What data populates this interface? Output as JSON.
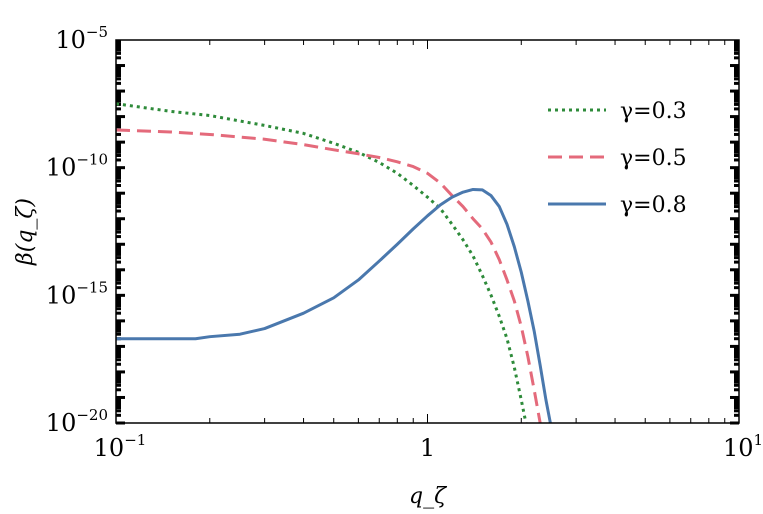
{
  "chart_data": {
    "type": "line",
    "title": "",
    "xlabel": "q_ζ",
    "ylabel": "β(q_ζ)",
    "xscale": "log",
    "yscale": "log",
    "xlim": [
      0.1,
      10
    ],
    "ylim": [
      1e-20,
      1e-05
    ],
    "x_tick_labels": [
      {
        "value": 0.1,
        "base": "10",
        "exp": "−1"
      },
      {
        "value": 1,
        "base": "1",
        "exp": ""
      },
      {
        "value": 10,
        "base": "10",
        "exp": "1"
      }
    ],
    "y_tick_labels": [
      {
        "value": 1e-05,
        "base": "10",
        "exp": "−5"
      },
      {
        "value": 1e-10,
        "base": "10",
        "exp": "−10"
      },
      {
        "value": 1e-15,
        "base": "10",
        "exp": "−15"
      },
      {
        "value": 1e-20,
        "base": "10",
        "exp": "−20"
      }
    ],
    "grid": false,
    "legend_position": "top-right",
    "series": [
      {
        "name": "γ=0.3",
        "color": "#2e8b3a",
        "dash": "dotted",
        "points": [
          [
            0.1,
            3.2e-08
          ],
          [
            0.15,
            1.6e-08
          ],
          [
            0.2,
            1.1e-08
          ],
          [
            0.3,
            4.5e-09
          ],
          [
            0.4,
            2.2e-09
          ],
          [
            0.5,
            9e-10
          ],
          [
            0.6,
            4e-10
          ],
          [
            0.7,
            1.6e-10
          ],
          [
            0.8,
            6e-11
          ],
          [
            0.9,
            2e-11
          ],
          [
            1.0,
            7e-12
          ],
          [
            1.1,
            2.5e-12
          ],
          [
            1.2,
            6e-13
          ],
          [
            1.3,
            1.5e-13
          ],
          [
            1.4,
            3.5e-14
          ],
          [
            1.5,
            6e-15
          ],
          [
            1.6,
            1e-15
          ],
          [
            1.7,
            1.5e-16
          ],
          [
            1.8,
            2e-17
          ],
          [
            1.9,
            1.5e-18
          ],
          [
            2.0,
            8e-20
          ],
          [
            2.07,
            1e-20
          ]
        ]
      },
      {
        "name": "γ=0.5",
        "color": "#e46a7b",
        "dash": "dashed",
        "points": [
          [
            0.1,
            3e-09
          ],
          [
            0.15,
            2.5e-09
          ],
          [
            0.2,
            2e-09
          ],
          [
            0.3,
            1.3e-09
          ],
          [
            0.4,
            8e-10
          ],
          [
            0.5,
            5e-10
          ],
          [
            0.6,
            3.5e-10
          ],
          [
            0.7,
            2.5e-10
          ],
          [
            0.8,
            1.7e-10
          ],
          [
            0.9,
            1.1e-10
          ],
          [
            1.0,
            6e-11
          ],
          [
            1.1,
            2.5e-11
          ],
          [
            1.2,
            8e-12
          ],
          [
            1.3,
            3e-12
          ],
          [
            1.4,
            1e-12
          ],
          [
            1.5,
            4e-13
          ],
          [
            1.6,
            1.2e-13
          ],
          [
            1.7,
            2.5e-14
          ],
          [
            1.8,
            4e-15
          ],
          [
            1.9,
            6e-16
          ],
          [
            2.0,
            6e-17
          ],
          [
            2.1,
            4e-18
          ],
          [
            2.2,
            2e-19
          ],
          [
            2.3,
            1e-20
          ]
        ]
      },
      {
        "name": "γ=0.8",
        "color": "#4a78ad",
        "dash": "solid",
        "points": [
          [
            0.1,
            2e-17
          ],
          [
            0.18,
            2e-17
          ],
          [
            0.2,
            2.4e-17
          ],
          [
            0.25,
            3e-17
          ],
          [
            0.3,
            5e-17
          ],
          [
            0.4,
            2e-16
          ],
          [
            0.5,
            8e-16
          ],
          [
            0.6,
            4e-15
          ],
          [
            0.7,
            2.2e-14
          ],
          [
            0.8,
            1e-13
          ],
          [
            0.9,
            4e-13
          ],
          [
            1.0,
            1.3e-12
          ],
          [
            1.1,
            3.5e-12
          ],
          [
            1.2,
            7e-12
          ],
          [
            1.3,
            1.1e-11
          ],
          [
            1.4,
            1.4e-11
          ],
          [
            1.5,
            1.35e-11
          ],
          [
            1.6,
            8e-12
          ],
          [
            1.7,
            3e-12
          ],
          [
            1.8,
            6e-13
          ],
          [
            1.9,
            8e-14
          ],
          [
            2.0,
            8e-15
          ],
          [
            2.1,
            6e-16
          ],
          [
            2.2,
            4e-17
          ],
          [
            2.3,
            1.8e-18
          ],
          [
            2.4,
            8e-20
          ],
          [
            2.48,
            1e-20
          ]
        ]
      }
    ]
  }
}
